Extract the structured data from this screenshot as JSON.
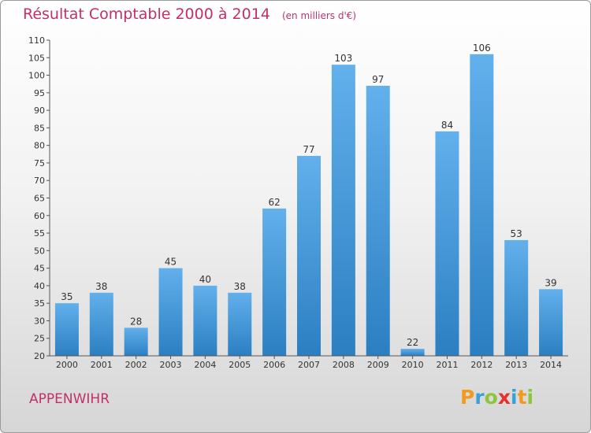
{
  "header": {
    "title": "Résultat Comptable 2000 à 2014",
    "unit": "(en milliers d'€)"
  },
  "commune": "APPENWIHR",
  "logo": [
    "P",
    "r",
    "o",
    "x",
    "i",
    "t",
    "i"
  ],
  "colors": {
    "title": "#c0306a",
    "bar_top": "#62b0ec",
    "bar_bottom": "#2b7fc1",
    "axis": "#555555"
  },
  "chart_data": {
    "type": "bar",
    "categories": [
      "2000",
      "2001",
      "2002",
      "2003",
      "2004",
      "2005",
      "2006",
      "2007",
      "2008",
      "2009",
      "2010",
      "2011",
      "2012",
      "2013",
      "2014"
    ],
    "values": [
      35,
      38,
      28,
      45,
      40,
      38,
      62,
      77,
      103,
      97,
      22,
      84,
      106,
      53,
      39
    ],
    "ylim": [
      20,
      110
    ],
    "yticks": [
      20,
      25,
      30,
      35,
      40,
      45,
      50,
      55,
      60,
      65,
      70,
      75,
      80,
      85,
      90,
      95,
      100,
      105,
      110
    ],
    "grid": false,
    "data_labels": true
  }
}
